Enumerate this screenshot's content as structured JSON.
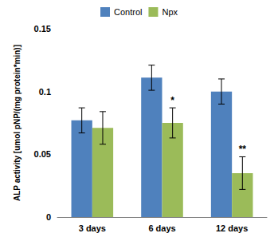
{
  "chart_data": {
    "type": "bar",
    "y_label": "ALP activity [umol pNP/(mg protein*min)]",
    "categories": [
      "3 days",
      "6 days",
      "12 days"
    ],
    "series": [
      {
        "name": "Control",
        "color": "#4f81bd",
        "values": [
          0.077,
          0.111,
          0.1
        ],
        "errors": [
          0.01,
          0.01,
          0.01
        ],
        "annotations": [
          null,
          null,
          null
        ]
      },
      {
        "name": "Npx",
        "color": "#9bbb59",
        "values": [
          0.071,
          0.075,
          0.035
        ],
        "errors": [
          0.013,
          0.012,
          0.013
        ],
        "annotations": [
          null,
          "*",
          "**"
        ]
      }
    ],
    "ylim": [
      0,
      0.15
    ],
    "yticks": [
      0,
      0.05,
      0.1,
      0.15
    ],
    "grid": false,
    "legend": "top"
  }
}
